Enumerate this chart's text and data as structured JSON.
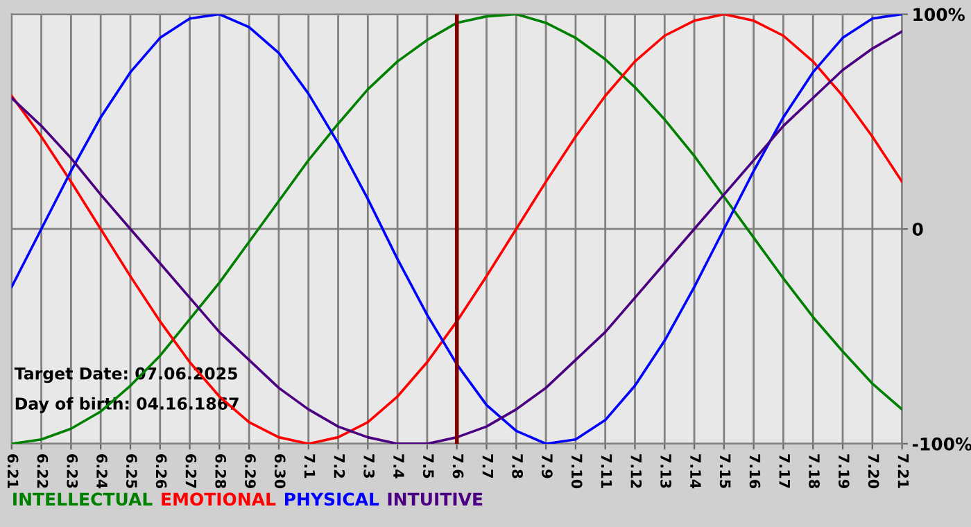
{
  "chart_data": {
    "type": "line",
    "categories": [
      "6.21",
      "6.22",
      "6.23",
      "6.24",
      "6.25",
      "6.26",
      "6.27",
      "6.28",
      "6.29",
      "6.30",
      "7.1",
      "7.2",
      "7.3",
      "7.4",
      "7.5",
      "7.6",
      "7.7",
      "7.8",
      "7.9",
      "7.10",
      "7.11",
      "7.12",
      "7.13",
      "7.14",
      "7.15",
      "7.16",
      "7.17",
      "7.18",
      "7.19",
      "7.20",
      "7.21"
    ],
    "series": [
      {
        "name": "INTELLECTUAL",
        "color": "#008000",
        "values": [
          -100,
          -98,
          -93,
          -85,
          -73,
          -59,
          -42,
          -25,
          -6,
          13,
          32,
          49,
          65,
          78,
          88,
          96,
          99,
          100,
          96,
          89,
          79,
          66,
          51,
          34,
          15,
          -4,
          -23,
          -41,
          -57,
          -72,
          -84
        ]
      },
      {
        "name": "EMOTIONAL",
        "color": "#ff0000",
        "values": [
          62,
          43,
          22,
          0,
          -22,
          -43,
          -62,
          -78,
          -90,
          -97,
          -100,
          -97,
          -90,
          -78,
          -62,
          -43,
          -22,
          0,
          22,
          43,
          62,
          78,
          90,
          97,
          100,
          97,
          90,
          78,
          62,
          43,
          22
        ]
      },
      {
        "name": "PHYSICAL",
        "color": "#0000ff",
        "values": [
          -27,
          0,
          27,
          52,
          73,
          89,
          98,
          100,
          94,
          82,
          63,
          40,
          14,
          -14,
          -40,
          -63,
          -82,
          -94,
          -100,
          -98,
          -89,
          -73,
          -52,
          -27,
          0,
          27,
          52,
          73,
          89,
          98,
          100
        ]
      },
      {
        "name": "INTUITIVE",
        "color": "#4b0082",
        "values": [
          61,
          48,
          33,
          16,
          0,
          -16,
          -32,
          -48,
          -61,
          -74,
          -84,
          -92,
          -97,
          -100,
          -100,
          -97,
          -92,
          -84,
          -74,
          -61,
          -48,
          -32,
          -16,
          0,
          16,
          32,
          48,
          61,
          74,
          84,
          92
        ]
      }
    ],
    "ylim": [
      -100,
      100
    ],
    "yticks": [
      {
        "value": 100,
        "label": "100%"
      },
      0,
      {
        "value": -100,
        "label": "-100%"
      }
    ],
    "ref_lines": [
      {
        "axis": "x",
        "value": "7.6",
        "color": "#800000"
      }
    ],
    "annotations": [
      "Target Date: 07.06.2025",
      "Day of birth: 04.16.1867"
    ],
    "grid": true,
    "legend": "bottom",
    "marker": "none",
    "line_style": "solid"
  }
}
